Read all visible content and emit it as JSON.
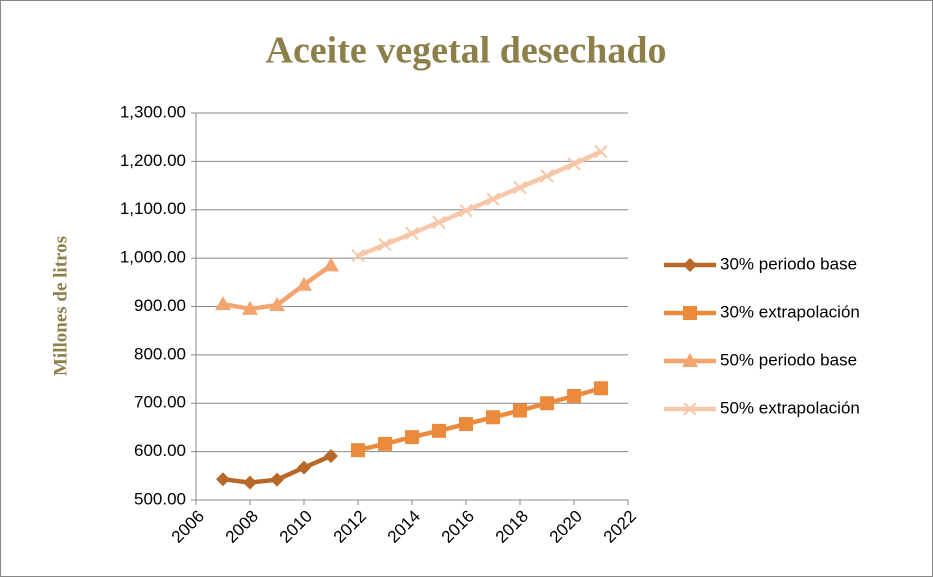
{
  "chart_data": {
    "type": "line",
    "title": "Aceite vegetal desechado",
    "y_label": "Millones de litros",
    "xlim": [
      2006,
      2022
    ],
    "xticks": [
      2006,
      2008,
      2010,
      2012,
      2014,
      2016,
      2018,
      2020,
      2022
    ],
    "ylim": [
      500,
      1300
    ],
    "yticks": [
      {
        "value": 500,
        "label": "500.00"
      },
      {
        "value": 600,
        "label": "600.00"
      },
      {
        "value": 700,
        "label": "700.00"
      },
      {
        "value": 800,
        "label": "800.00"
      },
      {
        "value": 900,
        "label": "900.00"
      },
      {
        "value": 1000,
        "label": "1,000.00"
      },
      {
        "value": 1100,
        "label": "1,100.00"
      },
      {
        "value": 1200,
        "label": "1,200.00"
      },
      {
        "value": 1300,
        "label": "1,300.00"
      }
    ],
    "grid": true,
    "legend": "right",
    "series": [
      {
        "name": "30% periodo base",
        "color": "#b8692a",
        "marker": "diamond",
        "x": [
          2007,
          2008,
          2009,
          2010,
          2011
        ],
        "values": [
          543,
          536,
          542,
          567,
          591
        ]
      },
      {
        "name": "30% extrapolación",
        "color": "#ec8a3c",
        "marker": "square",
        "x": [
          2012,
          2013,
          2014,
          2015,
          2016,
          2017,
          2018,
          2019,
          2020,
          2021
        ],
        "values": [
          603,
          616,
          630,
          643,
          657,
          671,
          685,
          700,
          715,
          731
        ]
      },
      {
        "name": "50% periodo base",
        "color": "#f4a46e",
        "marker": "triangle",
        "x": [
          2007,
          2008,
          2009,
          2010,
          2011
        ],
        "values": [
          905,
          895,
          903,
          945,
          985
        ]
      },
      {
        "name": "50% extrapolación",
        "color": "#f8c7a9",
        "marker": "x",
        "x": [
          2012,
          2013,
          2014,
          2015,
          2016,
          2017,
          2018,
          2019,
          2020,
          2021
        ],
        "values": [
          1005,
          1028,
          1051,
          1074,
          1098,
          1122,
          1146,
          1170,
          1195,
          1220
        ]
      }
    ]
  }
}
